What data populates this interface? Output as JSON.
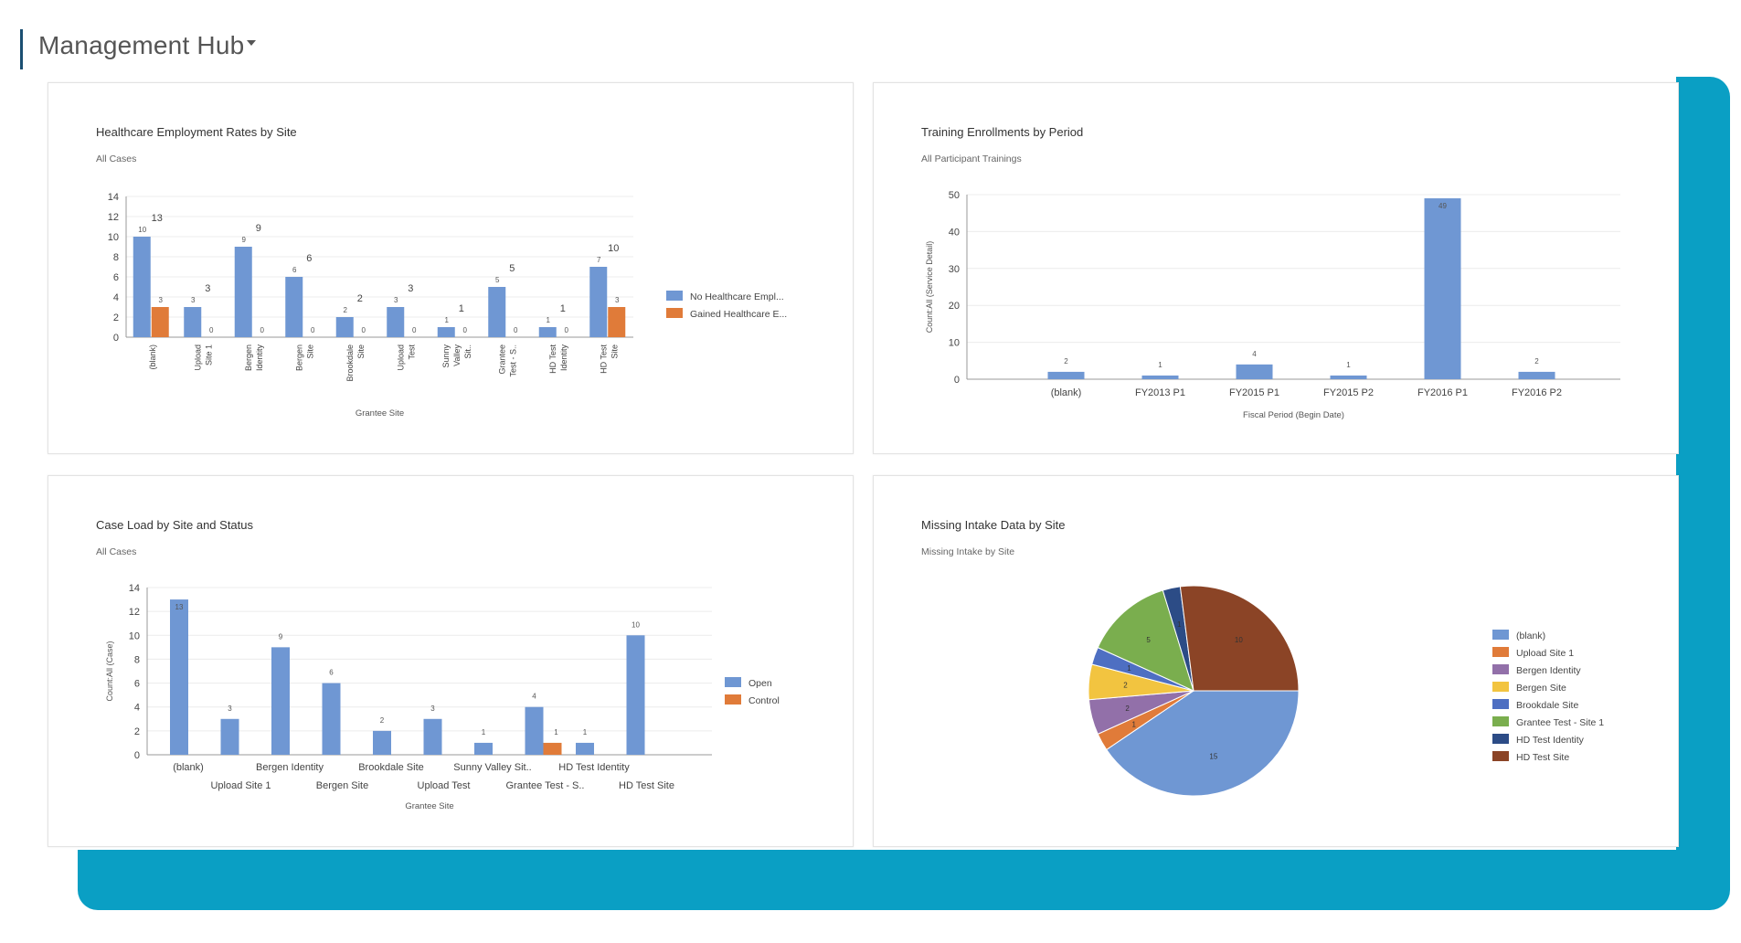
{
  "header": {
    "title": "Management Hub"
  },
  "colors": {
    "blue": "#6f97d3",
    "orange": "#e07b39",
    "teal": "#0a9fc4"
  },
  "panels": [
    {
      "title": "Healthcare Employment Rates by Site",
      "subtitle": "All Cases",
      "chart_data": {
        "type": "bar",
        "xlabel": "Grantee Site",
        "ylabel": "",
        "ylim": [
          0,
          14
        ],
        "yticks": [
          "0",
          "2",
          "4",
          "6",
          "8",
          "10",
          "12",
          "14"
        ],
        "categories": [
          [
            "(blank)"
          ],
          [
            "Upload",
            "Site 1"
          ],
          [
            "Bergen",
            "Identity"
          ],
          [
            "Bergen",
            "Site"
          ],
          [
            "Brookdale",
            "Site"
          ],
          [
            "Upload",
            "Test"
          ],
          [
            "Sunny",
            "Valley",
            "Sit.."
          ],
          [
            "Grantee",
            "Test - S.."
          ],
          [
            "HD Test",
            "Identity"
          ],
          [
            "HD Test",
            "Site"
          ]
        ],
        "series": [
          {
            "name": "No Healthcare Empl...",
            "values": [
              10,
              3,
              9,
              6,
              2,
              3,
              1,
              5,
              1,
              7
            ],
            "labels": [
              "10",
              "3",
              "9",
              "6",
              "2",
              "3",
              "1",
              "5",
              "1",
              "7"
            ]
          },
          {
            "name": "Gained Healthcare E...",
            "values": [
              3,
              0,
              0,
              0,
              0,
              0,
              0,
              0,
              0,
              3
            ],
            "labels": [
              "3",
              "0",
              "0",
              "0",
              "0",
              "0",
              "0",
              "0",
              "0",
              "3"
            ]
          }
        ],
        "totals": [
          "13",
          "3",
          "9",
          "6",
          "2",
          "3",
          "1",
          "5",
          "1",
          "10"
        ]
      }
    },
    {
      "title": "Training Enrollments by Period",
      "subtitle": "All Participant Trainings",
      "chart_data": {
        "type": "bar",
        "xlabel": "Fiscal Period (Begin Date)",
        "ylabel": "Count:All (Service Detail)",
        "ylim": [
          0,
          50
        ],
        "yticks": [
          "0",
          "10",
          "20",
          "30",
          "40",
          "50"
        ],
        "categories": [
          "(blank)",
          "FY2013 P1",
          "FY2015 P1",
          "FY2015 P2",
          "FY2016 P1",
          "FY2016 P2"
        ],
        "series": [
          {
            "name": "",
            "values": [
              2,
              1,
              4,
              1,
              49,
              2
            ],
            "labels": [
              "2",
              "1",
              "4",
              "1",
              "49",
              "2"
            ]
          }
        ]
      }
    },
    {
      "title": "Case Load by Site and Status",
      "subtitle": "All Cases",
      "chart_data": {
        "type": "bar",
        "xlabel": "Grantee Site",
        "ylabel": "Count:All (Case)",
        "ylim": [
          0,
          14
        ],
        "yticks": [
          "0",
          "2",
          "4",
          "6",
          "8",
          "10",
          "12",
          "14"
        ],
        "categories": [
          "(blank)",
          "Upload Site 1",
          "Bergen Identity",
          "Bergen Site",
          "Brookdale Site",
          "Upload Test",
          "Sunny Valley Sit..",
          "Grantee Test - S..",
          "HD Test Identity",
          "HD Test Site"
        ],
        "series": [
          {
            "name": "Open",
            "values": [
              13,
              3,
              9,
              6,
              2,
              3,
              1,
              4,
              1,
              10
            ],
            "labels": [
              "13",
              "3",
              "9",
              "6",
              "2",
              "3",
              "1",
              "4",
              "1",
              "10"
            ]
          },
          {
            "name": "Control",
            "values": [
              0,
              0,
              0,
              0,
              0,
              0,
              0,
              1,
              0,
              0
            ],
            "labels": [
              "",
              "",
              "",
              "",
              "",
              "",
              "",
              "1",
              "",
              ""
            ]
          }
        ]
      }
    },
    {
      "title": "Missing Intake Data by Site",
      "subtitle": "Missing Intake by Site",
      "chart_data": {
        "type": "pie",
        "slices": [
          {
            "name": "(blank)",
            "value": 15,
            "label": "15",
            "color": "#6f97d3"
          },
          {
            "name": "Upload Site 1",
            "value": 1,
            "label": "1",
            "color": "#e07b39"
          },
          {
            "name": "Bergen Identity",
            "value": 2,
            "label": "2",
            "color": "#9270a9"
          },
          {
            "name": "Bergen Site",
            "value": 2,
            "label": "2",
            "color": "#f2c440"
          },
          {
            "name": "Brookdale Site",
            "value": 1,
            "label": "1",
            "color": "#4e6fc2"
          },
          {
            "name": "Grantee Test - Site 1",
            "value": 5,
            "label": "5",
            "color": "#7aae4e"
          },
          {
            "name": "HD Test Identity",
            "value": 1,
            "label": "1",
            "color": "#2c4c86"
          },
          {
            "name": "HD Test Site",
            "value": 10,
            "label": "10",
            "color": "#8b4426"
          }
        ]
      }
    }
  ]
}
